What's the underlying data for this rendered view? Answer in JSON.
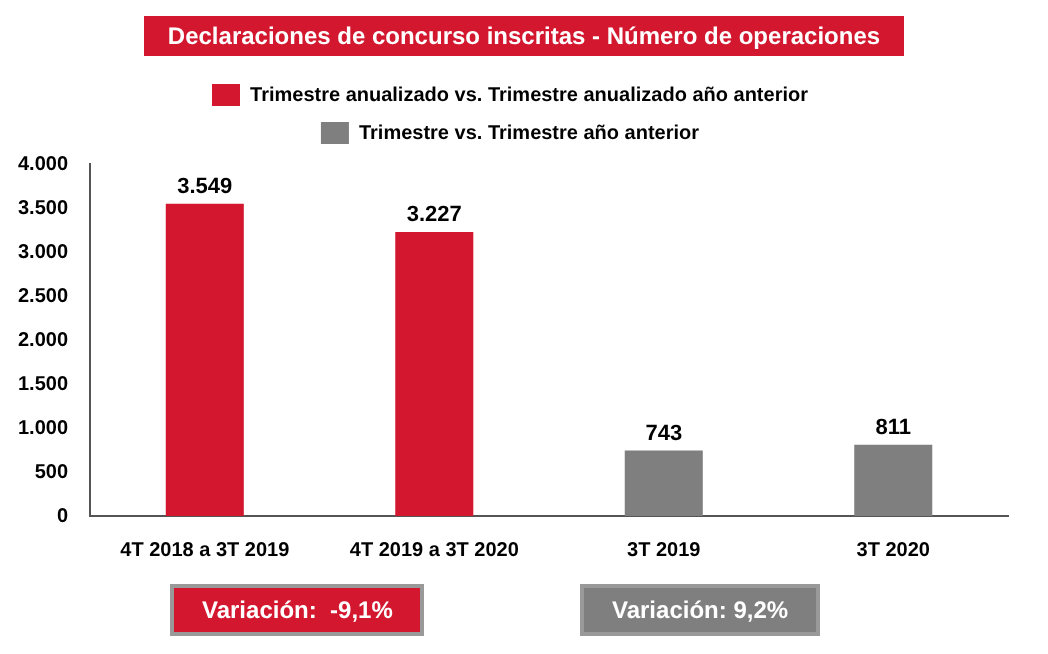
{
  "chart_data": {
    "type": "bar",
    "title": "Declaraciones de concurso inscritas - Número de operaciones",
    "categories": [
      "4T 2018 a 3T 2019",
      "4T 2019 a 3T 2020",
      "3T 2019",
      "3T 2020"
    ],
    "series": [
      {
        "name": "Trimestre anualizado vs. Trimestre anualizado año anterior",
        "color": "#d2172f",
        "values": [
          3549,
          3227,
          null,
          null
        ],
        "value_labels": [
          "3.549",
          "3.227",
          null,
          null
        ]
      },
      {
        "name": "Trimestre vs. Trimestre año anterior",
        "color": "#7f7f7f",
        "values": [
          null,
          null,
          743,
          811
        ],
        "value_labels": [
          null,
          null,
          "743",
          "811"
        ]
      }
    ],
    "ylim": [
      0,
      4000
    ],
    "yticks": [
      {
        "value": 0,
        "label": "0"
      },
      {
        "value": 500,
        "label": "500"
      },
      {
        "value": 1000,
        "label": "1.000"
      },
      {
        "value": 1500,
        "label": "1.500"
      },
      {
        "value": 2000,
        "label": "2.000"
      },
      {
        "value": 2500,
        "label": "2.500"
      },
      {
        "value": 3000,
        "label": "3.000"
      },
      {
        "value": 3500,
        "label": "3.500"
      },
      {
        "value": 4000,
        "label": "4.000"
      }
    ],
    "legend": "top",
    "grid": false,
    "annotations": [
      "Variación:  -9,1%",
      "Variación: 9,2%"
    ]
  }
}
